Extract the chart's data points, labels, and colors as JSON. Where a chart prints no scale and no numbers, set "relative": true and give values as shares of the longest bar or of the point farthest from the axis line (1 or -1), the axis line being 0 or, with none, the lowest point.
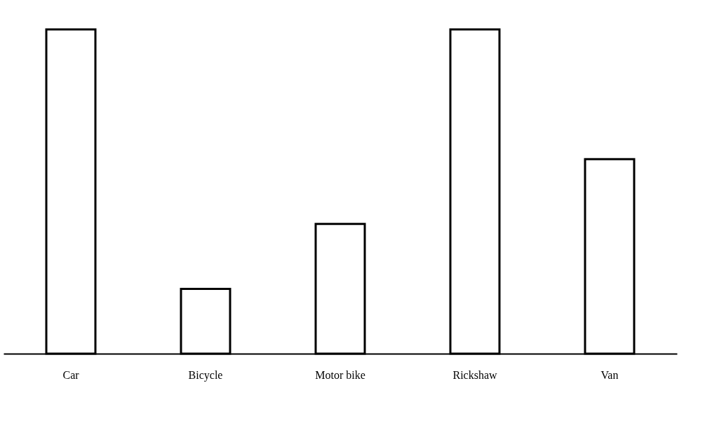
{
  "chart_data": {
    "type": "bar",
    "relative": true,
    "categories": [
      "Car",
      "Bicycle",
      "Motor bike",
      "Rickshaw",
      "Van"
    ],
    "values": [
      1,
      0.2,
      0.4,
      1,
      0.6
    ],
    "color": "#000000"
  }
}
